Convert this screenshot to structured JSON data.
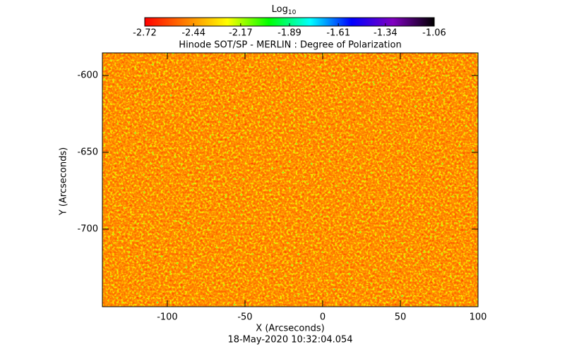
{
  "chart_data": {
    "type": "heatmap",
    "title": "Hinode SOT/SP - MERLIN : Degree of Polarization",
    "x_label": "X (Arcseconds)",
    "y_label": "Y (Arcseconds)",
    "footer": "18-May-2020 10:32:04.054",
    "colorbar_label": "Log",
    "colorbar_label_subscript": "10",
    "colormap": [
      "#ff0000",
      "#ff8000",
      "#ffff00",
      "#00ff00",
      "#00ffff",
      "#0000ff",
      "#8000c0",
      "#000000"
    ],
    "clim": [
      -2.72,
      -1.06
    ],
    "cticks": [
      -2.72,
      -2.44,
      -2.17,
      -1.89,
      -1.61,
      -1.34,
      -1.06
    ],
    "xlim": [
      -141.8,
      100
    ],
    "xticks": [
      -100,
      -50,
      0,
      50,
      100
    ],
    "ylim": [
      -750.5,
      -585.3
    ],
    "yticks": [
      -700,
      -650,
      -600
    ]
  }
}
